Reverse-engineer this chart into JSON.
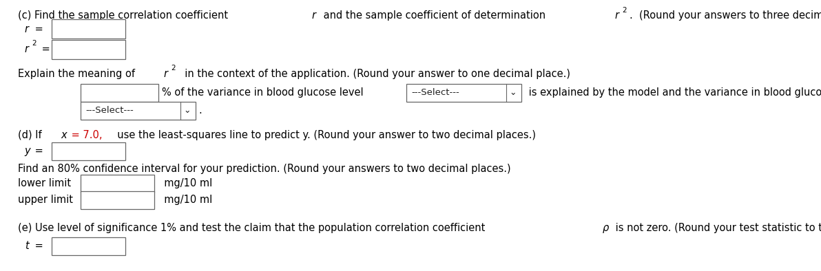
{
  "bg_color": "#ffffff",
  "text_color": "#000000",
  "red_color": "#cc0000",
  "fs": 10.5,
  "fs_sup": 7.5,
  "fs_small": 9.5,
  "line_c_prefix": "(c) Find the sample correlation coefficient ",
  "line_c_r": "r",
  "line_c_mid": " and the sample coefficient of determination  ",
  "line_c_r2r": "r",
  "line_c_end": ".  (Round your answers to three decimal places.)",
  "label_r_italic": "r",
  "label_r_eq": " =",
  "label_r2_italic": "r",
  "label_r2_sup": "2",
  "label_r2_eq": " =",
  "explain_prefix": "Explain the meaning of  ",
  "explain_r": "r",
  "explain_sup": "2",
  "explain_suffix": "  in the context of the application. (Round your answer to one decimal place.)",
  "pct_suffix": "% of the variance in blood glucose level",
  "dd1_label": "---Select---",
  "after_dd1": "is explained by the model and the variance in blood glucose level",
  "dd2_label": "---Select---",
  "part_d_pre": "(d) If ",
  "part_d_x": "x",
  "part_d_eq": " = 7.0,",
  "part_d_post": "  use the least-squares line to predict y. (Round your answer to two decimal places.)",
  "label_y_pre": "y",
  "label_y_eq": " =",
  "ci_text": "Find an 80% confidence interval for your prediction. (Round your answers to two decimal places.)",
  "lower_label": "lower limit",
  "upper_label": "upper limit",
  "unit": "mg/10 ml",
  "part_e_text": "(e) Use level of significance 1% and test the claim that the population correlation coefficient ",
  "part_e_rho": "ρ",
  "part_e_end": " is not zero. (Round your test statistic to three decimal places.)",
  "label_t_pre": "t",
  "label_t_eq": " ="
}
